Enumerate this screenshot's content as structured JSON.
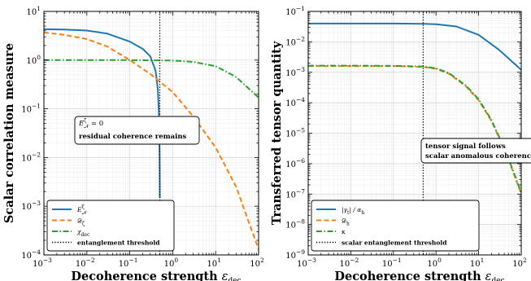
{
  "chart_data": [
    {
      "type": "line",
      "xscale": "log",
      "yscale": "log",
      "xlim": [
        0.001,
        100
      ],
      "ylim": [
        0.0001,
        10
      ],
      "xlabel": "Decoherence strength",
      "xlabel_symbol": "ε",
      "xlabel_sub": "dec",
      "ylabel": "Scalar correlation measure",
      "x_ticks": [
        "10",
        "10",
        "10",
        "10",
        "10",
        "10"
      ],
      "x_tick_exps": [
        "−3",
        "−2",
        "−1",
        "0",
        "1",
        "2"
      ],
      "y_ticks": [
        "10",
        "10",
        "10",
        "10",
        "10",
        "10"
      ],
      "y_tick_exps": [
        "−4",
        "−3",
        "−2",
        "−1",
        "0",
        "1"
      ],
      "grid": true,
      "legend_position": "lower-left",
      "series": [
        {
          "name": "E_N^ζ",
          "color": "#1f77b4",
          "style": "solid",
          "x": [
            0.001,
            0.003,
            0.01,
            0.03,
            0.1,
            0.2,
            0.3,
            0.4,
            0.45,
            0.48,
            0.495,
            0.5,
            0.5
          ],
          "y": [
            4.3,
            4.25,
            4.05,
            3.5,
            2.4,
            1.7,
            1.2,
            0.6,
            0.25,
            0.07,
            0.01,
            0.002,
            0.0015
          ]
        },
        {
          "name": "D_ζ",
          "color": "#ff7f0e",
          "style": "dashed",
          "x": [
            0.001,
            0.003,
            0.01,
            0.03,
            0.1,
            0.3,
            1,
            3,
            10,
            30,
            100
          ],
          "y": [
            3.7,
            3.3,
            2.7,
            1.9,
            1.0,
            0.52,
            0.22,
            0.07,
            0.016,
            0.0025,
            0.00013
          ]
        },
        {
          "name": "χ_dec",
          "color": "#2ca02c",
          "style": "dashdot",
          "x": [
            0.001,
            0.01,
            0.1,
            1,
            3,
            10,
            30,
            100
          ],
          "y": [
            1.0,
            1.0,
            1.0,
            0.98,
            0.92,
            0.75,
            0.45,
            0.17
          ]
        }
      ],
      "threshold": {
        "name": "entanglement threshold",
        "x": 0.5,
        "style": "dotted",
        "color": "#000000"
      },
      "annotation": {
        "line1": "E_N^ζ = 0",
        "line2": "residual coherence remains"
      }
    },
    {
      "type": "line",
      "xscale": "log",
      "yscale": "log",
      "xlim": [
        0.001,
        100
      ],
      "ylim": [
        1e-09,
        0.1
      ],
      "xlabel": "Decoherence strength",
      "xlabel_symbol": "ε",
      "xlabel_sub": "dec",
      "ylabel": "Transferred tensor quantity",
      "x_ticks": [
        "10",
        "10",
        "10",
        "10",
        "10",
        "10"
      ],
      "x_tick_exps": [
        "−3",
        "−2",
        "−1",
        "0",
        "1",
        "2"
      ],
      "y_ticks": [
        "10",
        "10",
        "10",
        "10",
        "10",
        "10",
        "10",
        "10",
        "10"
      ],
      "y_tick_exps": [
        "−9",
        "−8",
        "−7",
        "−6",
        "−5",
        "−4",
        "−3",
        "−2",
        "−1"
      ],
      "grid": true,
      "legend_position": "lower-left",
      "series": [
        {
          "name": "|γ_t| / α_h",
          "color": "#1f77b4",
          "style": "solid",
          "x": [
            0.001,
            0.01,
            0.1,
            0.5,
            1,
            3,
            10,
            30,
            100
          ],
          "y": [
            0.04,
            0.04,
            0.04,
            0.039,
            0.038,
            0.032,
            0.017,
            0.0055,
            0.0012
          ]
        },
        {
          "name": "D_h",
          "color": "#ff7f0e",
          "style": "dashed",
          "x": [
            0.001,
            0.01,
            0.1,
            0.5,
            1,
            2,
            5,
            10,
            20,
            40,
            60,
            100
          ],
          "y": [
            0.0016,
            0.0016,
            0.0016,
            0.0015,
            0.0013,
            0.0009,
            0.00035,
            0.00012,
            2.5e-05,
            3e-06,
            7e-07,
            1e-07
          ]
        },
        {
          "name": "κ",
          "color": "#2ca02c",
          "style": "dashdot",
          "x": [
            0.001,
            0.01,
            0.1,
            0.5,
            1,
            2,
            5,
            10,
            20,
            40,
            60,
            100
          ],
          "y": [
            0.00165,
            0.00165,
            0.00163,
            0.00155,
            0.00135,
            0.00095,
            0.00037,
            0.00013,
            2.7e-05,
            3.2e-06,
            7.5e-07,
            1.1e-07
          ]
        }
      ],
      "threshold": {
        "name": "scalar entanglement threshold",
        "x": 0.5,
        "style": "dotted",
        "color": "#000000"
      },
      "annotation": {
        "line1": "tensor signal follows",
        "line2": "scalar anomalous coherence"
      }
    }
  ]
}
